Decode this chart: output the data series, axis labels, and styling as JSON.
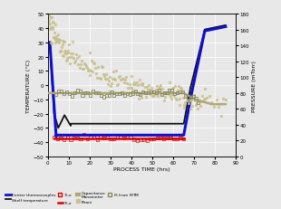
{
  "title": "",
  "xlabel": "PROCESS TIME (hrs)",
  "ylabel_left": "TEMPERATURE (°C)",
  "ylabel_right": "PRESSURE (mTorr)",
  "xlim": [
    0,
    90
  ],
  "ylim_left": [
    -50,
    50
  ],
  "ylim_right": [
    0,
    180
  ],
  "bg_color": "#e8e8e8",
  "plot_bg_color": "#e8e8e8",
  "grid_color": "#ffffff",
  "blue_color": "#1010cc",
  "black_color": "#111111",
  "red_color": "#dd0000",
  "cap_color": "#b0a880",
  "pirani_color": "#c8c090",
  "mtm_color": "#888860",
  "cap_line_color": "#b0a878"
}
